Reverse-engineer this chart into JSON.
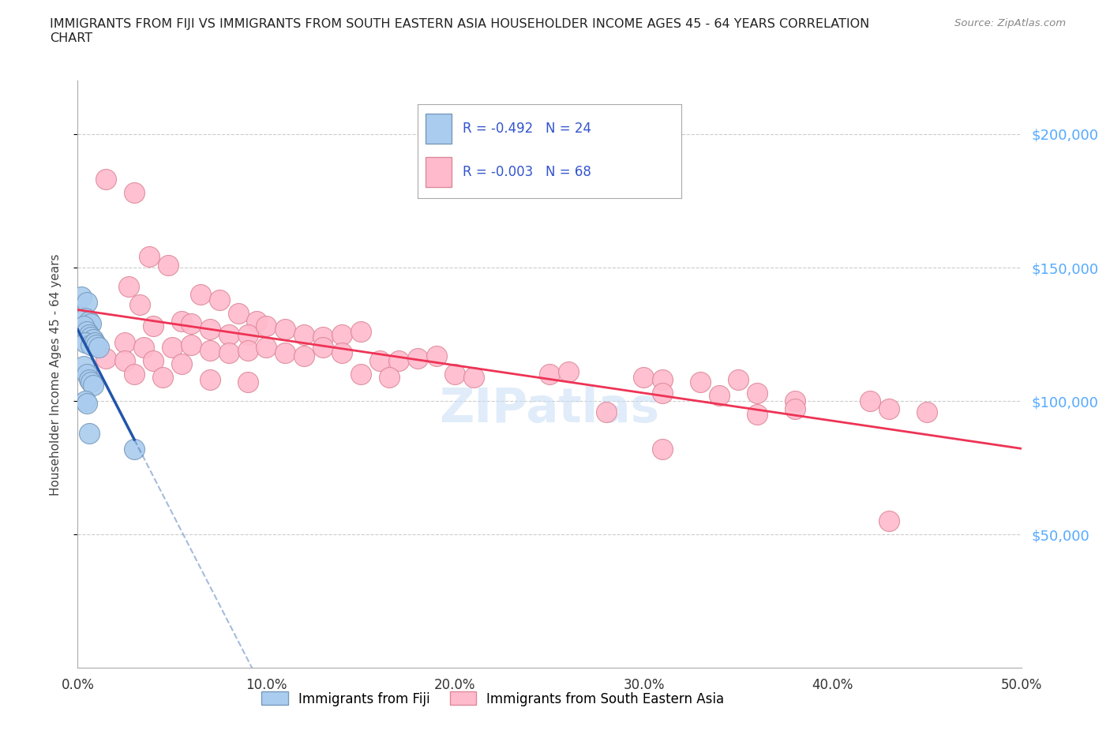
{
  "title": "IMMIGRANTS FROM FIJI VS IMMIGRANTS FROM SOUTH EASTERN ASIA HOUSEHOLDER INCOME AGES 45 - 64 YEARS CORRELATION\nCHART",
  "source": "Source: ZipAtlas.com",
  "ylabel": "Householder Income Ages 45 - 64 years",
  "xlim": [
    0.0,
    0.5
  ],
  "ylim": [
    0,
    220000
  ],
  "xtick_labels": [
    "0.0%",
    "10.0%",
    "20.0%",
    "30.0%",
    "40.0%",
    "50.0%"
  ],
  "xtick_values": [
    0.0,
    0.1,
    0.2,
    0.3,
    0.4,
    0.5
  ],
  "ytick_labels": [
    "$50,000",
    "$100,000",
    "$150,000",
    "$200,000"
  ],
  "ytick_values": [
    50000,
    100000,
    150000,
    200000
  ],
  "grid_color": "#cccccc",
  "background_color": "#ffffff",
  "watermark": "ZIPatlas",
  "legend_R1": "-0.492",
  "legend_N1": "24",
  "legend_R2": "-0.003",
  "legend_N2": "68",
  "fiji_color": "#aaccee",
  "fiji_edge_color": "#7799bb",
  "sea_color": "#ffbbcc",
  "sea_edge_color": "#dd8899",
  "fiji_line_color": "#2255aa",
  "sea_line_color": "#ee3355",
  "fiji_label": "Immigrants from Fiji",
  "sea_label": "Immigrants from South Eastern Asia",
  "fiji_points": [
    [
      0.002,
      139000
    ],
    [
      0.005,
      137000
    ],
    [
      0.004,
      131000
    ],
    [
      0.006,
      130000
    ],
    [
      0.007,
      129000
    ],
    [
      0.003,
      128000
    ],
    [
      0.005,
      126000
    ],
    [
      0.006,
      125000
    ],
    [
      0.007,
      124000
    ],
    [
      0.008,
      123000
    ],
    [
      0.004,
      122000
    ],
    [
      0.007,
      121000
    ],
    [
      0.009,
      122000
    ],
    [
      0.01,
      121000
    ],
    [
      0.011,
      120000
    ],
    [
      0.003,
      113000
    ],
    [
      0.005,
      110000
    ],
    [
      0.006,
      108000
    ],
    [
      0.007,
      107000
    ],
    [
      0.008,
      106000
    ],
    [
      0.004,
      100000
    ],
    [
      0.005,
      99000
    ],
    [
      0.006,
      88000
    ],
    [
      0.03,
      82000
    ]
  ],
  "sea_points": [
    [
      0.015,
      183000
    ],
    [
      0.03,
      178000
    ],
    [
      0.038,
      154000
    ],
    [
      0.048,
      151000
    ],
    [
      0.027,
      143000
    ],
    [
      0.033,
      136000
    ],
    [
      0.065,
      140000
    ],
    [
      0.075,
      138000
    ],
    [
      0.085,
      133000
    ],
    [
      0.095,
      130000
    ],
    [
      0.04,
      128000
    ],
    [
      0.055,
      130000
    ],
    [
      0.06,
      129000
    ],
    [
      0.07,
      127000
    ],
    [
      0.08,
      125000
    ],
    [
      0.09,
      125000
    ],
    [
      0.1,
      128000
    ],
    [
      0.11,
      127000
    ],
    [
      0.12,
      125000
    ],
    [
      0.13,
      124000
    ],
    [
      0.14,
      125000
    ],
    [
      0.15,
      126000
    ],
    [
      0.025,
      122000
    ],
    [
      0.035,
      120000
    ],
    [
      0.05,
      120000
    ],
    [
      0.06,
      121000
    ],
    [
      0.07,
      119000
    ],
    [
      0.08,
      118000
    ],
    [
      0.09,
      119000
    ],
    [
      0.1,
      120000
    ],
    [
      0.11,
      118000
    ],
    [
      0.12,
      117000
    ],
    [
      0.015,
      116000
    ],
    [
      0.025,
      115000
    ],
    [
      0.04,
      115000
    ],
    [
      0.055,
      114000
    ],
    [
      0.13,
      120000
    ],
    [
      0.14,
      118000
    ],
    [
      0.16,
      115000
    ],
    [
      0.17,
      115000
    ],
    [
      0.18,
      116000
    ],
    [
      0.19,
      117000
    ],
    [
      0.03,
      110000
    ],
    [
      0.045,
      109000
    ],
    [
      0.07,
      108000
    ],
    [
      0.09,
      107000
    ],
    [
      0.15,
      110000
    ],
    [
      0.165,
      109000
    ],
    [
      0.2,
      110000
    ],
    [
      0.21,
      109000
    ],
    [
      0.25,
      110000
    ],
    [
      0.26,
      111000
    ],
    [
      0.3,
      109000
    ],
    [
      0.31,
      108000
    ],
    [
      0.33,
      107000
    ],
    [
      0.35,
      108000
    ],
    [
      0.31,
      103000
    ],
    [
      0.34,
      102000
    ],
    [
      0.36,
      103000
    ],
    [
      0.38,
      100000
    ],
    [
      0.28,
      96000
    ],
    [
      0.36,
      95000
    ],
    [
      0.38,
      97000
    ],
    [
      0.42,
      100000
    ],
    [
      0.43,
      97000
    ],
    [
      0.45,
      96000
    ],
    [
      0.31,
      82000
    ],
    [
      0.43,
      55000
    ]
  ],
  "sea_line_y_intercept": 119000,
  "sea_line_slope": 0
}
